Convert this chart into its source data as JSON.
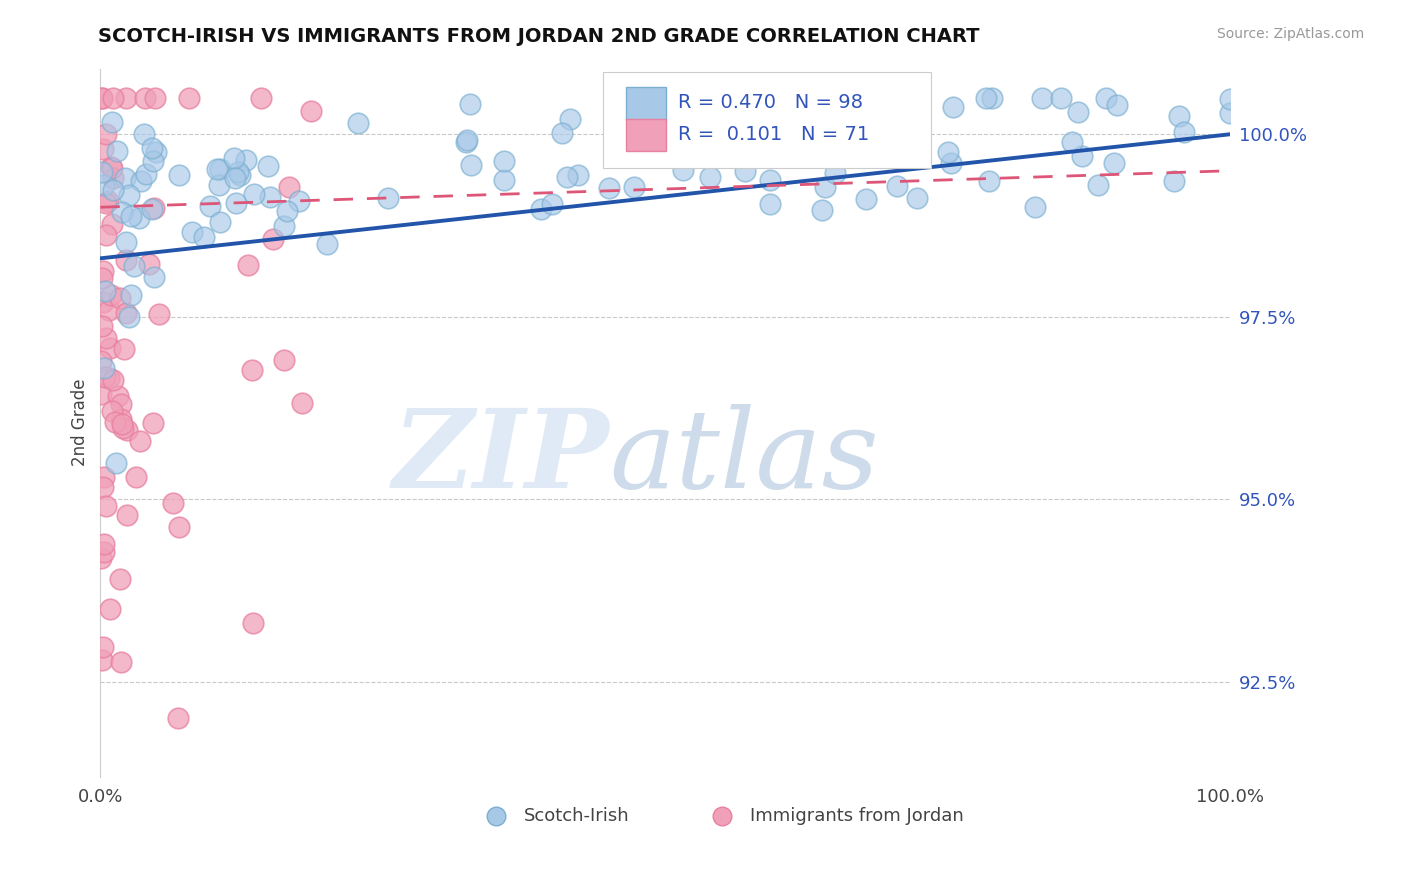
{
  "title": "SCOTCH-IRISH VS IMMIGRANTS FROM JORDAN 2ND GRADE CORRELATION CHART",
  "source_text": "Source: ZipAtlas.com",
  "ylabel": "2nd Grade",
  "ytick_labels": [
    "92.5%",
    "95.0%",
    "97.5%",
    "100.0%"
  ],
  "ytick_values": [
    92.5,
    95.0,
    97.5,
    100.0
  ],
  "xmin": 0.0,
  "xmax": 100.0,
  "ymin": 91.2,
  "ymax": 100.9,
  "blue_color": "#a8c8e8",
  "pink_color": "#f0a0b8",
  "blue_edge_color": "#7aafd0",
  "pink_edge_color": "#e880a0",
  "blue_line_color": "#2255aa",
  "pink_line_color": "#dd5577",
  "legend_blue_r": "R = 0.470",
  "legend_blue_n": "N = 98",
  "legend_pink_r": "R =  0.101",
  "legend_pink_n": "N = 71",
  "blue_trend": [
    0.0,
    100.0,
    98.3,
    100.0
  ],
  "pink_trend": [
    0.0,
    100.0,
    99.0,
    99.5
  ]
}
